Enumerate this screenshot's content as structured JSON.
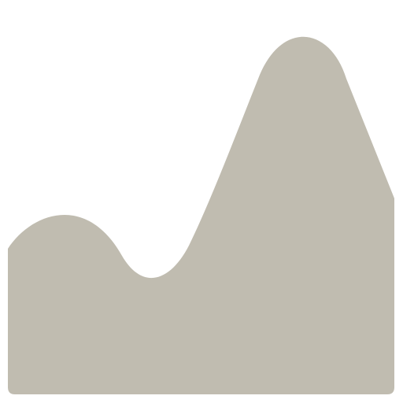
{
  "icon": {
    "name": "area-chart-icon",
    "fill_color": "#c0bcb0",
    "background_color": "#ffffff"
  }
}
